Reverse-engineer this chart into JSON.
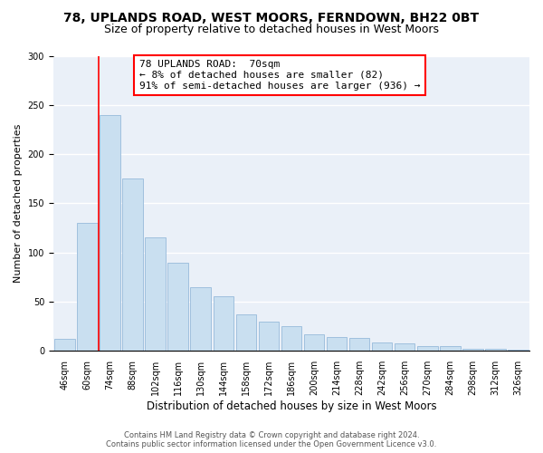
{
  "title": "78, UPLANDS ROAD, WEST MOORS, FERNDOWN, BH22 0BT",
  "subtitle": "Size of property relative to detached houses in West Moors",
  "xlabel": "Distribution of detached houses by size in West Moors",
  "ylabel": "Number of detached properties",
  "categories": [
    "46sqm",
    "60sqm",
    "74sqm",
    "88sqm",
    "102sqm",
    "116sqm",
    "130sqm",
    "144sqm",
    "158sqm",
    "172sqm",
    "186sqm",
    "200sqm",
    "214sqm",
    "228sqm",
    "242sqm",
    "256sqm",
    "270sqm",
    "284sqm",
    "298sqm",
    "312sqm",
    "326sqm"
  ],
  "values": [
    12,
    130,
    240,
    175,
    115,
    90,
    65,
    56,
    37,
    30,
    25,
    17,
    14,
    13,
    9,
    8,
    5,
    5,
    2,
    2,
    1
  ],
  "bar_color": "#c9dff0",
  "bar_edge_color": "#a0c0de",
  "vline_x": 1.5,
  "vline_color": "red",
  "annotation_line1": "78 UPLANDS ROAD:  70sqm",
  "annotation_line2": "← 8% of detached houses are smaller (82)",
  "annotation_line3": "91% of semi-detached houses are larger (936) →",
  "annotation_box_color": "white",
  "annotation_box_edge_color": "red",
  "ylim": [
    0,
    300
  ],
  "yticks": [
    0,
    50,
    100,
    150,
    200,
    250,
    300
  ],
  "bg_color": "#eaf0f8",
  "footer1": "Contains HM Land Registry data © Crown copyright and database right 2024.",
  "footer2": "Contains public sector information licensed under the Open Government Licence v3.0.",
  "title_fontsize": 10,
  "subtitle_fontsize": 9,
  "tick_fontsize": 7,
  "ylabel_fontsize": 8,
  "xlabel_fontsize": 8.5,
  "annotation_fontsize": 8,
  "footer_fontsize": 6
}
